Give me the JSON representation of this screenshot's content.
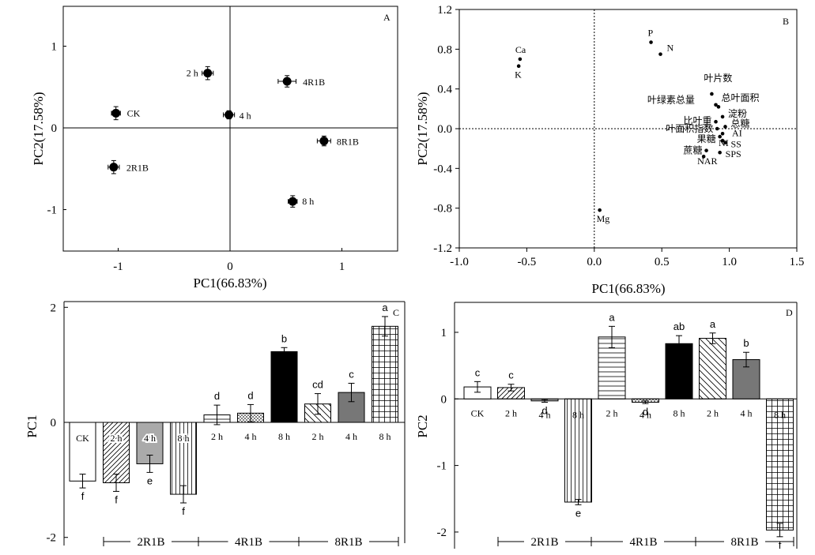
{
  "chart_data": [
    {
      "panel": "A",
      "type": "scatter",
      "xlabel": "PC1(66.83%)",
      "ylabel": "PC2(17.58%)",
      "xlim": [
        -1.5,
        1.5
      ],
      "ylim": [
        -1.5,
        1.5
      ],
      "xticks": [
        "-1",
        "0",
        "1"
      ],
      "yticks": [
        "1",
        "0",
        "-1"
      ],
      "points": [
        {
          "label": "CK",
          "x": -1.02,
          "y": 0.18,
          "xerr": 0.04,
          "yerr": 0.08
        },
        {
          "label": "2 h",
          "x": -0.2,
          "y": 0.67,
          "xerr": 0.05,
          "yerr": 0.08
        },
        {
          "label": "4 h",
          "x": -0.01,
          "y": 0.16,
          "xerr": 0.05,
          "yerr": 0.05
        },
        {
          "label": "4R1B",
          "x": 0.51,
          "y": 0.57,
          "xerr": 0.08,
          "yerr": 0.07
        },
        {
          "label": "2R1B",
          "x": -1.04,
          "y": -0.48,
          "xerr": 0.05,
          "yerr": 0.08
        },
        {
          "label": "8R1B",
          "x": 0.84,
          "y": -0.16,
          "xerr": 0.06,
          "yerr": 0.06
        },
        {
          "label": "8 h",
          "x": 0.56,
          "y": -0.9,
          "xerr": 0.04,
          "yerr": 0.07
        }
      ]
    },
    {
      "panel": "B",
      "type": "scatter",
      "xlabel": "PC1(66.83%)",
      "ylabel": "PC2(17.58%)",
      "xlim": [
        -1.0,
        1.5
      ],
      "ylim": [
        -1.2,
        1.2
      ],
      "xticks": [
        "-1.0",
        "-0.5",
        "0.0",
        "0.5",
        "1.0",
        "1.5"
      ],
      "yticks": [
        "1.2",
        "0.8",
        "0.4",
        "0.0",
        "-0.4",
        "-0.8",
        "-1.2"
      ],
      "points": [
        {
          "label": "P",
          "x": 0.42,
          "y": 0.87
        },
        {
          "label": "N",
          "x": 0.49,
          "y": 0.75
        },
        {
          "label": "Ca",
          "x": -0.55,
          "y": 0.7
        },
        {
          "label": "K",
          "x": -0.56,
          "y": 0.63
        },
        {
          "label": "Mg",
          "x": 0.04,
          "y": -0.82
        },
        {
          "label": "叶片数",
          "x": 0.87,
          "y": 0.35
        },
        {
          "label": "总叶面积",
          "x": 0.9,
          "y": 0.24
        },
        {
          "label": "叶绿素总量",
          "x": 0.92,
          "y": 0.22
        },
        {
          "label": "淀粉",
          "x": 0.95,
          "y": 0.12
        },
        {
          "label": "比叶重",
          "x": 0.9,
          "y": 0.07
        },
        {
          "label": "总糖",
          "x": 0.97,
          "y": 0.02
        },
        {
          "label": "叶面积指数",
          "x": 0.91,
          "y": 0.0
        },
        {
          "label": "AI",
          "x": 0.95,
          "y": -0.05
        },
        {
          "label": "果糖",
          "x": 0.93,
          "y": -0.08
        },
        {
          "label": "NI",
          "x": 0.95,
          "y": -0.12
        },
        {
          "label": "SS",
          "x": 0.97,
          "y": -0.14
        },
        {
          "label": "蔗糖",
          "x": 0.83,
          "y": -0.22
        },
        {
          "label": "SPS",
          "x": 0.93,
          "y": -0.24
        },
        {
          "label": "NAR",
          "x": 0.81,
          "y": -0.28
        }
      ]
    },
    {
      "panel": "C",
      "type": "bar",
      "ylabel": "PC1",
      "ylim": [
        -2.1,
        2.1
      ],
      "yticks": [
        "2",
        "0",
        "-2"
      ],
      "categories": [
        "CK",
        "2 h",
        "4 h",
        "8 h",
        "2 h",
        "4 h",
        "8 h",
        "2 h",
        "4 h",
        "8 h"
      ],
      "groups": [
        "2R1B",
        "4R1B",
        "8R1B"
      ],
      "values": [
        -1.02,
        -1.05,
        -0.72,
        -1.25,
        0.13,
        0.16,
        1.23,
        0.32,
        0.52,
        1.67
      ],
      "errors": [
        0.12,
        0.15,
        0.15,
        0.15,
        0.17,
        0.15,
        0.07,
        0.18,
        0.16,
        0.17
      ],
      "letters": [
        "f",
        "f",
        "e",
        "f",
        "d",
        "d",
        "b",
        "cd",
        "c",
        "a"
      ]
    },
    {
      "panel": "D",
      "type": "bar",
      "ylabel": "PC2",
      "ylim": [
        -2.25,
        1.45
      ],
      "yticks": [
        "1",
        "0",
        "-1",
        "-2"
      ],
      "categories": [
        "CK",
        "2 h",
        "4 h",
        "8 h",
        "2 h",
        "4 h",
        "8 h",
        "2 h",
        "4 h",
        "8 h"
      ],
      "groups": [
        "2R1B",
        "4R1B",
        "8R1B"
      ],
      "values": [
        0.18,
        0.17,
        -0.03,
        -1.55,
        0.93,
        -0.05,
        0.83,
        0.91,
        0.59,
        -1.97
      ],
      "errors": [
        0.08,
        0.05,
        0.02,
        0.04,
        0.16,
        0.02,
        0.12,
        0.08,
        0.11,
        0.1
      ],
      "letters": [
        "c",
        "c",
        "d",
        "e",
        "a",
        "d",
        "ab",
        "a",
        "b",
        "f"
      ]
    }
  ]
}
